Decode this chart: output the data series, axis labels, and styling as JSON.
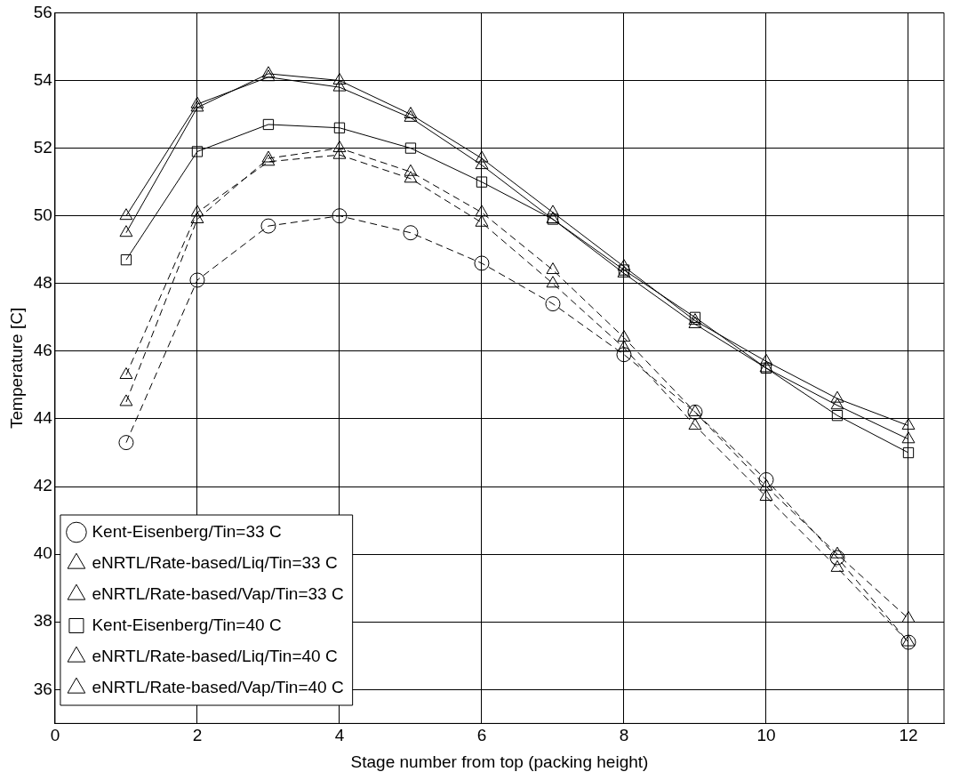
{
  "chart_data": {
    "type": "line",
    "xlabel": "Stage number from top (packing height)",
    "ylabel": "Temperature [C]",
    "x": [
      1,
      2,
      3,
      4,
      5,
      6,
      7,
      8,
      9,
      10,
      11,
      12
    ],
    "xlim": [
      0,
      12.5
    ],
    "xticks": [
      0,
      2,
      4,
      6,
      8,
      10,
      12
    ],
    "ylim": [
      35,
      56
    ],
    "yticks": [
      36,
      38,
      40,
      42,
      44,
      46,
      48,
      50,
      52,
      54,
      56
    ],
    "grid": true,
    "legend": "bottom left",
    "series": [
      {
        "name": "Kent-Eisenberg/Tin=33 C",
        "color": "#000000",
        "marker": "circle",
        "line_style": "dashed",
        "values": [
          43.3,
          48.1,
          49.7,
          50.0,
          49.5,
          48.6,
          47.4,
          45.9,
          44.2,
          42.2,
          39.9,
          37.4
        ]
      },
      {
        "name": "eNRTL/Rate-based/Liq/Tin=33 C",
        "color": "#000000",
        "marker": "triangle",
        "line_style": "dashed",
        "values": [
          44.5,
          49.9,
          51.7,
          52.0,
          51.3,
          50.1,
          48.4,
          46.4,
          44.2,
          42.0,
          40.0,
          38.1
        ]
      },
      {
        "name": "eNRTL/Rate-based/Vap/Tin=33 C",
        "color": "#000000",
        "marker": "triangle",
        "line_style": "dashed",
        "values": [
          45.3,
          50.1,
          51.6,
          51.8,
          51.1,
          49.8,
          48.0,
          46.1,
          43.8,
          41.7,
          39.6,
          37.4
        ]
      },
      {
        "name": "Kent-Eisenberg/Tin=40 C",
        "color": "#000000",
        "marker": "square",
        "line_style": "solid",
        "values": [
          48.7,
          51.9,
          52.7,
          52.6,
          52.0,
          51.0,
          49.9,
          48.4,
          47.0,
          45.5,
          44.1,
          43.0
        ]
      },
      {
        "name": "eNRTL/Rate-based/Liq/Tin=40 C",
        "color": "#000000",
        "marker": "triangle",
        "line_style": "solid",
        "values": [
          49.5,
          53.2,
          54.2,
          54.0,
          53.0,
          51.7,
          50.1,
          48.5,
          46.9,
          45.7,
          44.6,
          43.8
        ]
      },
      {
        "name": "eNRTL/Rate-based/Vap/Tin=40 C",
        "color": "#000000",
        "marker": "triangle",
        "line_style": "solid",
        "values": [
          50.0,
          53.3,
          54.1,
          53.8,
          52.9,
          51.5,
          49.9,
          48.3,
          46.8,
          45.5,
          44.4,
          43.4
        ]
      }
    ]
  }
}
